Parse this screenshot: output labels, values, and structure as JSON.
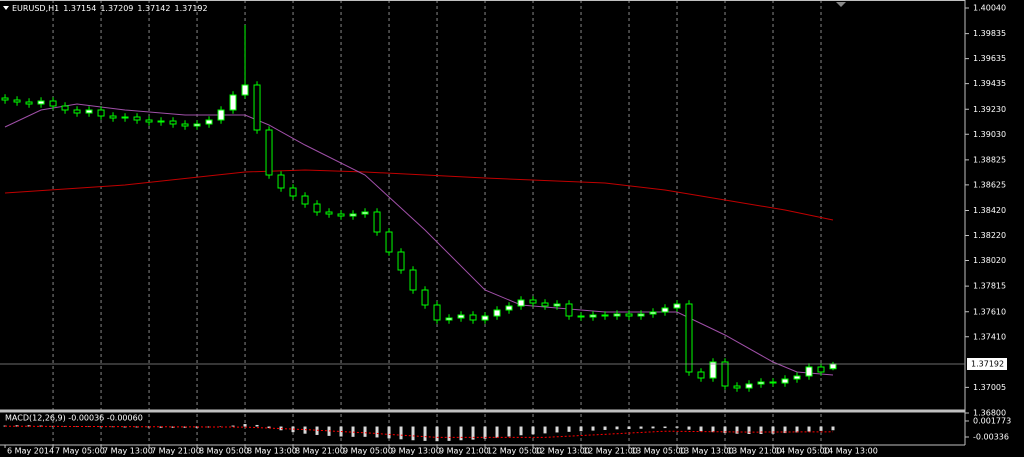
{
  "chart_data": {
    "type": "candlestick",
    "symbol": "EURUSD,H1",
    "categories": [
      "6 May 2014",
      null,
      null,
      null,
      "7 May 05:00",
      null,
      null,
      null,
      "7 May 13:00",
      null,
      null,
      null,
      "7 May 21:00",
      null,
      null,
      null,
      "8 May 05:00",
      null,
      null,
      null,
      "8 May 13:00",
      null,
      null,
      null,
      "8 May 21:00",
      null,
      null,
      null,
      "9 May 05:00",
      null,
      null,
      null,
      "9 May 13:00",
      null,
      null,
      null,
      "9 May 21:00",
      null,
      null,
      null,
      "12 May 05:00",
      null,
      null,
      null,
      "12 May 13:00",
      null,
      null,
      null,
      "12 May 21:00",
      null,
      null,
      null,
      "13 May 05:00",
      null,
      null,
      null,
      "13 May 13:00",
      null,
      null,
      null,
      "13 May 21:00",
      null,
      null,
      null,
      "14 May 05:00",
      null,
      null,
      null,
      "14 May 13:00",
      null
    ],
    "open": [
      1.3932,
      1.39304,
      1.39288,
      1.39272,
      1.39296,
      1.39256,
      1.39224,
      1.392,
      1.39224,
      1.39176,
      1.3916,
      1.39168,
      1.39144,
      1.39128,
      1.39136,
      1.39112,
      1.39096,
      1.39112,
      1.39144,
      1.39224,
      1.39344,
      1.39424,
      1.39064,
      1.38704,
      1.386,
      1.38536,
      1.38472,
      1.38408,
      1.38392,
      1.38376,
      1.38392,
      1.38408,
      1.38248,
      1.38088,
      1.37944,
      1.37784,
      1.37664,
      1.37544,
      1.3756,
      1.37584,
      1.37544,
      1.37576,
      1.37624,
      1.37656,
      1.37704,
      1.3768,
      1.37656,
      1.37672,
      1.37576,
      1.37568,
      1.37584,
      1.37576,
      1.37592,
      1.37576,
      1.37592,
      1.37608,
      1.3764,
      1.37672,
      1.37128,
      1.3708,
      1.37208,
      1.37016,
      1.37,
      1.37032,
      1.37048,
      1.3704,
      1.37072,
      1.37096,
      1.37168,
      1.37154
    ],
    "high": [
      1.3935,
      1.39334,
      1.39318,
      1.39326,
      1.39326,
      1.39286,
      1.39254,
      1.39254,
      1.39254,
      1.39206,
      1.39198,
      1.39198,
      1.39174,
      1.39166,
      1.39166,
      1.39142,
      1.39142,
      1.39174,
      1.39254,
      1.39374,
      1.39904,
      1.39454,
      1.39094,
      1.38734,
      1.3863,
      1.38566,
      1.38502,
      1.38438,
      1.38422,
      1.38422,
      1.38438,
      1.38438,
      1.38278,
      1.38118,
      1.37974,
      1.37814,
      1.37694,
      1.3759,
      1.37614,
      1.37614,
      1.37606,
      1.37654,
      1.37686,
      1.37734,
      1.37734,
      1.3771,
      1.37702,
      1.37702,
      1.37606,
      1.37614,
      1.37614,
      1.37622,
      1.37622,
      1.37622,
      1.37638,
      1.3767,
      1.37702,
      1.37702,
      1.37158,
      1.37238,
      1.37238,
      1.37046,
      1.37062,
      1.37078,
      1.37078,
      1.37102,
      1.37126,
      1.37198,
      1.37198,
      1.37209
    ],
    "low": [
      1.39274,
      1.39258,
      1.39242,
      1.39242,
      1.39226,
      1.39194,
      1.3917,
      1.3917,
      1.39146,
      1.3913,
      1.3913,
      1.39114,
      1.39098,
      1.39098,
      1.39082,
      1.39066,
      1.39066,
      1.39082,
      1.39114,
      1.39194,
      1.39314,
      1.39034,
      1.38674,
      1.3857,
      1.38506,
      1.38442,
      1.38378,
      1.38362,
      1.38346,
      1.38346,
      1.38362,
      1.38218,
      1.38058,
      1.37914,
      1.37754,
      1.37634,
      1.37514,
      1.37514,
      1.3753,
      1.37514,
      1.37514,
      1.37546,
      1.37594,
      1.37626,
      1.3765,
      1.37626,
      1.37626,
      1.37546,
      1.37538,
      1.37538,
      1.37546,
      1.37546,
      1.37546,
      1.37546,
      1.37562,
      1.37578,
      1.3761,
      1.37098,
      1.3705,
      1.3705,
      1.36986,
      1.3697,
      1.3697,
      1.37002,
      1.3701,
      1.3701,
      1.37042,
      1.37066,
      1.37098,
      1.37142
    ],
    "close": [
      1.39304,
      1.39288,
      1.39272,
      1.39296,
      1.39256,
      1.39224,
      1.392,
      1.39224,
      1.39176,
      1.3916,
      1.39168,
      1.39144,
      1.39128,
      1.39136,
      1.39112,
      1.39096,
      1.39112,
      1.39144,
      1.39224,
      1.39344,
      1.39424,
      1.39064,
      1.38704,
      1.386,
      1.38536,
      1.38472,
      1.38408,
      1.38392,
      1.38376,
      1.38392,
      1.38408,
      1.38248,
      1.38088,
      1.37944,
      1.37784,
      1.37664,
      1.37544,
      1.3756,
      1.37584,
      1.37544,
      1.37576,
      1.37624,
      1.37656,
      1.37704,
      1.3768,
      1.37656,
      1.37672,
      1.37576,
      1.37568,
      1.37584,
      1.37576,
      1.37592,
      1.37576,
      1.37592,
      1.37608,
      1.3764,
      1.37672,
      1.37128,
      1.3708,
      1.37208,
      1.37016,
      1.37,
      1.37032,
      1.37048,
      1.3704,
      1.37072,
      1.37096,
      1.37168,
      1.37128,
      1.37192
    ],
    "bull_color": "#ffffff",
    "bear_color": "#000000",
    "wick_color": "#00ff00",
    "xlim": [
      -0.42,
      80
    ],
    "ylim": [
      1.36824,
      1.40104
    ],
    "yticks": [
      {
        "value": 1.4004,
        "label": "1.40040"
      },
      1.39835,
      1.39635,
      1.39435,
      {
        "value": 1.3923,
        "label": "1.39230"
      },
      {
        "value": 1.3903,
        "label": "1.39030"
      },
      1.38825,
      1.38625,
      {
        "value": 1.3842,
        "label": "1.38420"
      },
      {
        "value": 1.3822,
        "label": "1.38220"
      },
      {
        "value": 1.3802,
        "label": "1.38020"
      },
      1.37815,
      {
        "value": 1.3761,
        "label": "1.37610"
      },
      {
        "value": 1.3741,
        "label": "1.37410"
      },
      1.37005,
      {
        "value": 1.368,
        "label": "1.36800"
      }
    ],
    "grid": true,
    "indicators": [
      {
        "color": "#c00000",
        "x": [
          0,
          10,
          20,
          25,
          30,
          40,
          50,
          55,
          60,
          65,
          69
        ],
        "values": [
          1.3856,
          1.38624,
          1.38728,
          1.38744,
          1.38728,
          1.3868,
          1.3864,
          1.38584,
          1.38504,
          1.38424,
          1.38344
        ]
      },
      {
        "color": "#a050a8",
        "x": [
          0,
          3,
          6,
          10,
          15,
          20,
          22,
          25,
          30,
          35,
          40,
          43,
          50,
          56,
          60,
          64,
          66,
          69
        ],
        "values": [
          1.39088,
          1.39224,
          1.39272,
          1.39224,
          1.39184,
          1.39184,
          1.39104,
          1.38944,
          1.38704,
          1.38264,
          1.37784,
          1.37664,
          1.37608,
          1.37608,
          1.37424,
          1.37208,
          1.37128,
          1.37104
        ]
      }
    ],
    "macd": {
      "type": "bar",
      "title": "MACD(12,26,9) -0.00036 -0.00060",
      "color": "#d8d8d8",
      "values": [
        0.0003,
        0.0004,
        0.0004,
        0.0003,
        0.0002,
        0.0001,
        0,
        -0.0001,
        -0.0002,
        -0.0002,
        -0.0003,
        -0.0003,
        -0.0003,
        -0.0004,
        -0.0004,
        -0.0004,
        -0.0004,
        -0.0003,
        -0.0001,
        0.0003,
        0.0008,
        0.0005,
        -0.0005,
        -0.0012,
        -0.0018,
        -0.0023,
        -0.0027,
        -0.003,
        -0.0032,
        -0.0033,
        -0.0033,
        -0.0035,
        -0.0038,
        -0.0041,
        -0.0044,
        -0.0046,
        -0.0047,
        -0.0046,
        -0.0044,
        -0.0042,
        -0.0039,
        -0.0036,
        -0.0032,
        -0.0028,
        -0.0025,
        -0.0022,
        -0.0019,
        -0.0017,
        -0.0015,
        -0.0013,
        -0.0011,
        -0.0009,
        -0.0008,
        -0.0007,
        -0.0006,
        -0.0005,
        -0.0004,
        -0.001,
        -0.0015,
        -0.0018,
        -0.0021,
        -0.0023,
        -0.0024,
        -0.0024,
        -0.0023,
        -0.0021,
        -0.0019,
        -0.0016,
        -0.0014,
        -0.0012
      ],
      "ylim": [
        -0.00528,
        0.00433
      ],
      "yticks": [
        0.001773,
        -0.00336
      ],
      "signal": {
        "color": "#ff0000",
        "x": [
          0,
          20,
          25,
          30,
          36,
          45,
          55,
          62,
          69
        ],
        "values": [
          0.0001,
          -0.0002,
          -0.001,
          -0.002,
          -0.0035,
          -0.0035,
          -0.0015,
          -0.0018,
          -0.0017
        ]
      }
    }
  }
}
